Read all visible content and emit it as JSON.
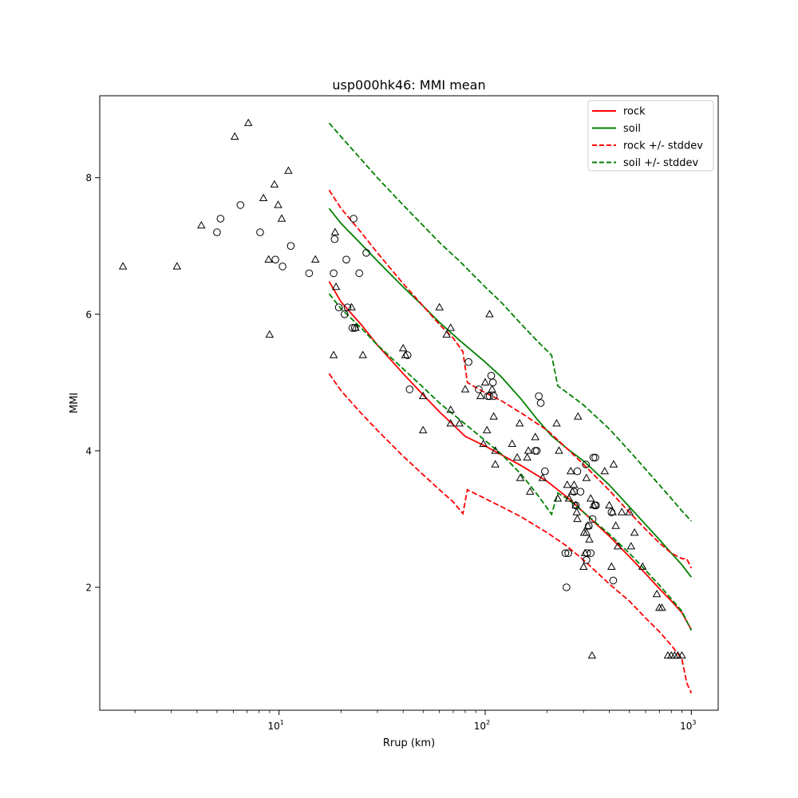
{
  "chart_data": {
    "type": "scatter",
    "title": "usp000hk46: MMI mean",
    "xlabel": "Rrup (km)",
    "ylabel": "MMI",
    "xscale": "log",
    "xlim": [
      1.35,
      1350
    ],
    "ylim": [
      0.2,
      9.2
    ],
    "grid": false,
    "legend_position": "top-right",
    "x_ticks": [
      {
        "value": 10,
        "label": "10",
        "sup": "1"
      },
      {
        "value": 100,
        "label": "10",
        "sup": "2"
      },
      {
        "value": 1000,
        "label": "10",
        "sup": "3"
      }
    ],
    "y_ticks": [
      {
        "value": 2,
        "label": "2"
      },
      {
        "value": 4,
        "label": "4"
      },
      {
        "value": 6,
        "label": "6"
      },
      {
        "value": 8,
        "label": "8"
      }
    ],
    "legend": [
      {
        "label": "rock",
        "color": "#ff0000",
        "dash": false
      },
      {
        "label": "soil",
        "color": "#008000",
        "dash": false
      },
      {
        "label": "rock +/- stddev",
        "color": "#ff0000",
        "dash": true
      },
      {
        "label": "soil +/- stddev",
        "color": "#008000",
        "dash": true
      }
    ],
    "lines": [
      {
        "id": "rock",
        "color": "#ff0000",
        "dash": false,
        "points": [
          [
            17.5,
            6.48
          ],
          [
            20,
            6.18
          ],
          [
            25,
            5.85
          ],
          [
            30,
            5.55
          ],
          [
            40,
            5.13
          ],
          [
            50,
            4.82
          ],
          [
            60,
            4.57
          ],
          [
            70,
            4.38
          ],
          [
            80,
            4.21
          ],
          [
            100,
            4.07
          ],
          [
            120,
            3.94
          ],
          [
            150,
            3.78
          ],
          [
            200,
            3.55
          ],
          [
            250,
            3.32
          ],
          [
            300,
            3.1
          ],
          [
            400,
            2.75
          ],
          [
            500,
            2.45
          ],
          [
            600,
            2.2
          ],
          [
            700,
            1.98
          ],
          [
            800,
            1.8
          ],
          [
            900,
            1.63
          ],
          [
            1000,
            1.38
          ]
        ]
      },
      {
        "id": "soil",
        "color": "#008000",
        "dash": false,
        "points": [
          [
            17.5,
            7.55
          ],
          [
            20,
            7.33
          ],
          [
            25,
            7.03
          ],
          [
            30,
            6.78
          ],
          [
            40,
            6.4
          ],
          [
            50,
            6.12
          ],
          [
            60,
            5.88
          ],
          [
            75,
            5.62
          ],
          [
            100,
            5.3
          ],
          [
            120,
            5.08
          ],
          [
            150,
            4.75
          ],
          [
            180,
            4.45
          ],
          [
            210,
            4.22
          ],
          [
            250,
            4.03
          ],
          [
            300,
            3.85
          ],
          [
            400,
            3.5
          ],
          [
            500,
            3.18
          ],
          [
            600,
            2.92
          ],
          [
            700,
            2.7
          ],
          [
            800,
            2.5
          ],
          [
            900,
            2.33
          ],
          [
            1000,
            2.15
          ]
        ]
      },
      {
        "id": "rock-upper",
        "color": "#ff0000",
        "dash": true,
        "points": [
          [
            17.5,
            7.82
          ],
          [
            20,
            7.55
          ],
          [
            25,
            7.2
          ],
          [
            30,
            6.9
          ],
          [
            40,
            6.45
          ],
          [
            50,
            6.12
          ],
          [
            60,
            5.85
          ],
          [
            70,
            5.65
          ],
          [
            78,
            5.45
          ],
          [
            82,
            5
          ],
          [
            100,
            4.85
          ],
          [
            120,
            4.73
          ],
          [
            150,
            4.55
          ],
          [
            200,
            4.3
          ],
          [
            250,
            4.03
          ],
          [
            300,
            3.8
          ],
          [
            400,
            3.42
          ],
          [
            500,
            3.1
          ],
          [
            600,
            2.85
          ],
          [
            700,
            2.65
          ],
          [
            800,
            2.5
          ],
          [
            900,
            2.42
          ],
          [
            950,
            2.42
          ],
          [
            1000,
            2.28
          ]
        ]
      },
      {
        "id": "rock-lower",
        "color": "#ff0000",
        "dash": true,
        "points": [
          [
            17.5,
            5.13
          ],
          [
            20,
            4.88
          ],
          [
            25,
            4.55
          ],
          [
            30,
            4.3
          ],
          [
            40,
            3.92
          ],
          [
            50,
            3.65
          ],
          [
            60,
            3.43
          ],
          [
            70,
            3.25
          ],
          [
            78,
            3.08
          ],
          [
            82,
            3.43
          ],
          [
            100,
            3.3
          ],
          [
            120,
            3.18
          ],
          [
            150,
            3.03
          ],
          [
            200,
            2.8
          ],
          [
            250,
            2.6
          ],
          [
            300,
            2.4
          ],
          [
            400,
            2.05
          ],
          [
            500,
            1.8
          ],
          [
            600,
            1.55
          ],
          [
            700,
            1.35
          ],
          [
            800,
            1.15
          ],
          [
            850,
            1.05
          ],
          [
            900,
            0.95
          ],
          [
            950,
            0.6
          ],
          [
            1000,
            0.45
          ]
        ]
      },
      {
        "id": "soil-upper",
        "color": "#008000",
        "dash": true,
        "points": [
          [
            17.5,
            8.8
          ],
          [
            20,
            8.6
          ],
          [
            25,
            8.27
          ],
          [
            30,
            8.0
          ],
          [
            40,
            7.6
          ],
          [
            50,
            7.3
          ],
          [
            60,
            7.05
          ],
          [
            75,
            6.78
          ],
          [
            100,
            6.4
          ],
          [
            120,
            6.17
          ],
          [
            150,
            5.85
          ],
          [
            180,
            5.6
          ],
          [
            210,
            5.4
          ],
          [
            225,
            4.95
          ],
          [
            250,
            4.85
          ],
          [
            300,
            4.67
          ],
          [
            400,
            4.32
          ],
          [
            500,
            4.0
          ],
          [
            600,
            3.73
          ],
          [
            700,
            3.5
          ],
          [
            800,
            3.3
          ],
          [
            900,
            3.12
          ],
          [
            1000,
            2.97
          ]
        ]
      },
      {
        "id": "soil-lower",
        "color": "#008000",
        "dash": true,
        "points": [
          [
            17.5,
            6.3
          ],
          [
            20,
            6.08
          ],
          [
            25,
            5.8
          ],
          [
            30,
            5.55
          ],
          [
            40,
            5.2
          ],
          [
            50,
            4.93
          ],
          [
            60,
            4.7
          ],
          [
            75,
            4.46
          ],
          [
            100,
            4.15
          ],
          [
            120,
            3.95
          ],
          [
            150,
            3.65
          ],
          [
            180,
            3.35
          ],
          [
            210,
            3.07
          ],
          [
            225,
            3.38
          ],
          [
            250,
            3.3
          ],
          [
            300,
            3.1
          ],
          [
            400,
            2.78
          ],
          [
            500,
            2.5
          ],
          [
            600,
            2.25
          ],
          [
            700,
            2.03
          ],
          [
            800,
            1.83
          ],
          [
            900,
            1.65
          ],
          [
            1000,
            1.37
          ]
        ]
      }
    ],
    "series": [
      {
        "marker": "triangle",
        "points": [
          [
            1.75,
            6.7
          ],
          [
            3.2,
            6.7
          ],
          [
            4.2,
            7.3
          ],
          [
            6.1,
            8.6
          ],
          [
            7.1,
            8.8
          ],
          [
            8.4,
            7.7
          ],
          [
            8.9,
            6.8
          ],
          [
            9.0,
            5.7
          ],
          [
            9.5,
            7.9
          ],
          [
            9.9,
            7.6
          ],
          [
            10.3,
            7.4
          ],
          [
            11.1,
            8.1
          ],
          [
            15.0,
            6.8
          ],
          [
            18.4,
            5.4
          ],
          [
            18.7,
            7.2
          ],
          [
            18.9,
            6.4
          ],
          [
            22.5,
            6.1
          ],
          [
            23.5,
            5.8
          ],
          [
            25.5,
            5.4
          ],
          [
            40.0,
            5.5
          ],
          [
            41.0,
            5.4
          ],
          [
            50.0,
            4.3
          ],
          [
            50.0,
            4.8
          ],
          [
            60.0,
            6.1
          ],
          [
            65.0,
            5.7
          ],
          [
            68.0,
            5.8
          ],
          [
            68.0,
            4.6
          ],
          [
            68.0,
            4.4
          ],
          [
            75.0,
            4.4
          ],
          [
            80.0,
            4.9
          ],
          [
            95.0,
            4.8
          ],
          [
            98.0,
            4.1
          ],
          [
            100.0,
            5.0
          ],
          [
            102.0,
            4.3
          ],
          [
            105.0,
            6.0
          ],
          [
            108.0,
            4.9
          ],
          [
            110.0,
            4.5
          ],
          [
            112.0,
            3.8
          ],
          [
            112.0,
            4.0
          ],
          [
            135.0,
            4.1
          ],
          [
            143.0,
            3.9
          ],
          [
            147.0,
            4.4
          ],
          [
            148.0,
            3.6
          ],
          [
            160.0,
            3.9
          ],
          [
            162.0,
            4.0
          ],
          [
            165.0,
            3.4
          ],
          [
            175.0,
            4.2
          ],
          [
            190.0,
            3.6
          ],
          [
            222.0,
            4.4
          ],
          [
            225.0,
            3.3
          ],
          [
            228.0,
            4.0
          ],
          [
            250.0,
            3.5
          ],
          [
            255.0,
            3.3
          ],
          [
            260.0,
            3.7
          ],
          [
            265.0,
            3.4
          ],
          [
            270.0,
            3.5
          ],
          [
            275.0,
            3.2
          ],
          [
            278.0,
            3.1
          ],
          [
            280.0,
            3.0
          ],
          [
            282.0,
            4.5
          ],
          [
            300.0,
            2.3
          ],
          [
            302.0,
            2.8
          ],
          [
            305.0,
            2.5
          ],
          [
            310.0,
            2.8
          ],
          [
            310.0,
            3.6
          ],
          [
            315.0,
            2.9
          ],
          [
            320.0,
            2.7
          ],
          [
            325.0,
            3.3
          ],
          [
            330.0,
            1.0
          ],
          [
            335.0,
            3.2
          ],
          [
            380.0,
            3.7
          ],
          [
            400.0,
            3.2
          ],
          [
            410.0,
            2.3
          ],
          [
            415.0,
            3.1
          ],
          [
            420.0,
            3.8
          ],
          [
            430.0,
            2.9
          ],
          [
            440.0,
            2.6
          ],
          [
            460.0,
            3.1
          ],
          [
            500.0,
            3.1
          ],
          [
            510.0,
            2.6
          ],
          [
            530.0,
            2.8
          ],
          [
            580.0,
            2.3
          ],
          [
            680.0,
            1.9
          ],
          [
            700.0,
            1.7
          ],
          [
            720.0,
            1.7
          ],
          [
            770.0,
            1.0
          ],
          [
            800.0,
            1.0
          ],
          [
            830.0,
            1.0
          ],
          [
            860.0,
            1.0
          ],
          [
            900.0,
            1.0
          ]
        ]
      },
      {
        "marker": "circle",
        "points": [
          [
            5.0,
            7.2
          ],
          [
            5.2,
            7.4
          ],
          [
            6.5,
            7.6
          ],
          [
            8.1,
            7.2
          ],
          [
            9.6,
            6.8
          ],
          [
            10.4,
            6.7
          ],
          [
            11.4,
            7.0
          ],
          [
            14.0,
            6.6
          ],
          [
            18.4,
            6.6
          ],
          [
            18.6,
            7.1
          ],
          [
            19.5,
            6.1
          ],
          [
            20.8,
            6.0
          ],
          [
            21.2,
            6.8
          ],
          [
            21.5,
            6.1
          ],
          [
            22.7,
            5.8
          ],
          [
            23.0,
            7.4
          ],
          [
            23.3,
            5.8
          ],
          [
            24.5,
            6.6
          ],
          [
            26.5,
            6.9
          ],
          [
            42.0,
            5.4
          ],
          [
            43.0,
            4.9
          ],
          [
            83.0,
            5.3
          ],
          [
            93.0,
            4.9
          ],
          [
            103.0,
            4.8
          ],
          [
            105.0,
            4.8
          ],
          [
            107.0,
            5.1
          ],
          [
            109.0,
            5.0
          ],
          [
            110.0,
            4.8
          ],
          [
            175.0,
            4.0
          ],
          [
            178.0,
            4.0
          ],
          [
            182.0,
            4.8
          ],
          [
            186.0,
            4.7
          ],
          [
            195.0,
            3.7
          ],
          [
            245.0,
            2.5
          ],
          [
            248.0,
            2.0
          ],
          [
            253.0,
            2.5
          ],
          [
            270.0,
            3.4
          ],
          [
            275.0,
            3.2
          ],
          [
            280.0,
            3.7
          ],
          [
            290.0,
            3.4
          ],
          [
            308.0,
            3.8
          ],
          [
            310.0,
            2.4
          ],
          [
            312.0,
            2.5
          ],
          [
            318.0,
            2.9
          ],
          [
            325.0,
            2.5
          ],
          [
            332.0,
            3.0
          ],
          [
            335.0,
            3.9
          ],
          [
            340.0,
            3.2
          ],
          [
            342.0,
            3.9
          ],
          [
            345.0,
            3.2
          ],
          [
            410.0,
            3.1
          ],
          [
            418.0,
            2.1
          ]
        ]
      }
    ]
  }
}
